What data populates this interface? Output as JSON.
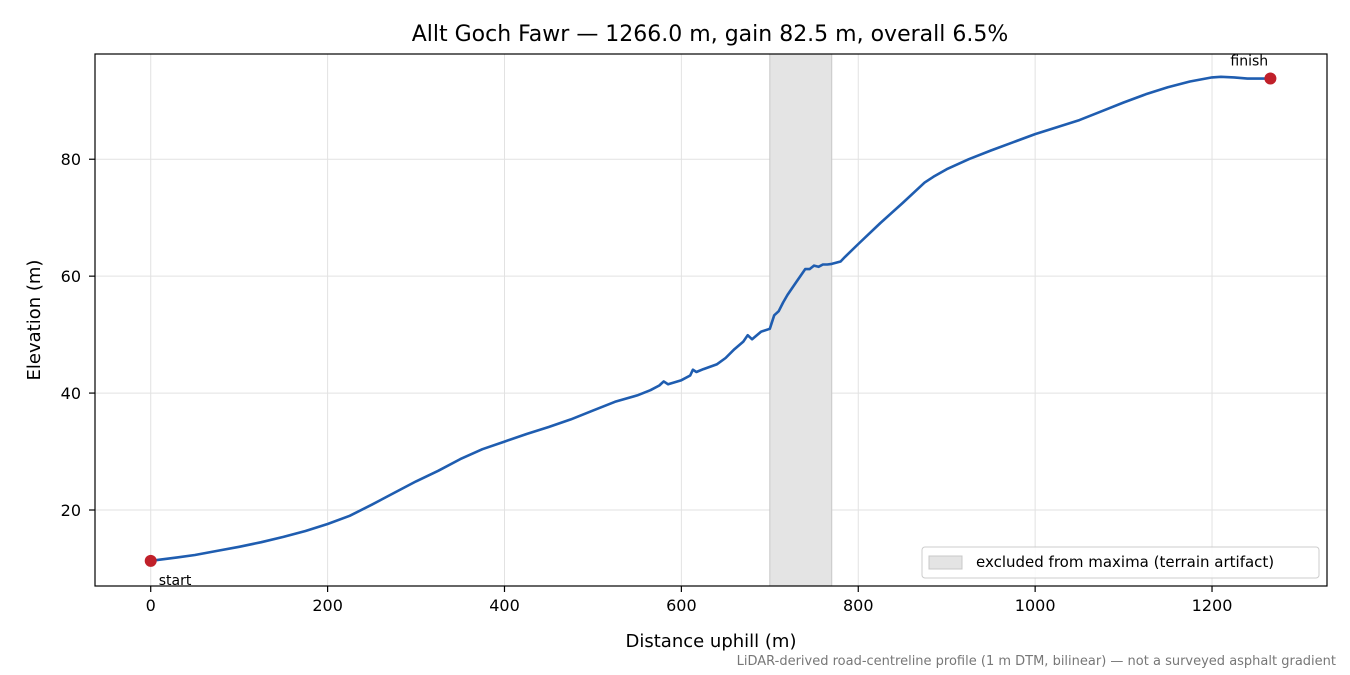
{
  "chart_data": {
    "type": "line",
    "title": "Allt Goch Fawr — 1266.0 m, gain 82.5 m, overall 6.5%",
    "xlabel": "Distance uphill (m)",
    "ylabel": "Elevation (m)",
    "xlim": [
      -63,
      1330
    ],
    "ylim": [
      7,
      98
    ],
    "xticks": [
      0,
      200,
      400,
      600,
      800,
      1000,
      1200
    ],
    "yticks": [
      20,
      40,
      60,
      80
    ],
    "grid": true,
    "series": [
      {
        "color": "#1f5db0",
        "x": [
          0,
          10,
          30,
          50,
          75,
          100,
          125,
          150,
          175,
          200,
          225,
          250,
          275,
          300,
          325,
          350,
          375,
          400,
          425,
          450,
          475,
          500,
          525,
          550,
          565,
          575,
          580,
          585,
          600,
          610,
          613,
          617,
          625,
          640,
          650,
          660,
          670,
          675,
          680,
          690,
          700,
          705,
          710,
          715,
          720,
          730,
          740,
          745,
          750,
          755,
          760,
          765,
          770,
          780,
          785,
          800,
          825,
          850,
          875,
          885,
          900,
          925,
          950,
          975,
          1000,
          1025,
          1050,
          1075,
          1100,
          1125,
          1150,
          1175,
          1200,
          1210,
          1225,
          1240,
          1255,
          1266
        ],
        "y": [
          11.3,
          11.5,
          11.9,
          12.3,
          13.0,
          13.7,
          14.5,
          15.4,
          16.4,
          17.6,
          19.0,
          20.9,
          22.9,
          24.9,
          26.7,
          28.7,
          30.4,
          31.7,
          33.0,
          34.2,
          35.5,
          37.0,
          38.5,
          39.6,
          40.5,
          41.3,
          42.0,
          41.5,
          42.2,
          43.0,
          44.0,
          43.6,
          44.1,
          44.9,
          46.0,
          47.5,
          48.8,
          49.9,
          49.2,
          50.5,
          51.0,
          53.3,
          54.0,
          55.5,
          56.8,
          59.0,
          61.2,
          61.2,
          61.8,
          61.6,
          62.0,
          62.0,
          62.1,
          62.5,
          63.3,
          65.5,
          69.1,
          72.5,
          76.0,
          77.0,
          78.3,
          80.0,
          81.5,
          82.9,
          84.3,
          85.5,
          86.7,
          88.2,
          89.7,
          91.1,
          92.3,
          93.3,
          94.0,
          94.1,
          94.0,
          93.8,
          93.8,
          93.8
        ]
      }
    ],
    "markers": [
      {
        "x": 0,
        "y": 11.3,
        "label": "start",
        "color": "#c0202a"
      },
      {
        "x": 1266,
        "y": 93.8,
        "label": "finish",
        "color": "#c0202a"
      }
    ],
    "shaded_region": {
      "x_start": 700,
      "x_end": 770,
      "label": "excluded from maxima (terrain artifact)",
      "color": "#e4e4e4"
    },
    "legend": {
      "placement": "lower-right",
      "entries": [
        "excluded from maxima (terrain artifact)"
      ]
    },
    "caption": "LiDAR-derived road-centreline profile (1 m DTM, bilinear) — not a surveyed asphalt gradient"
  }
}
